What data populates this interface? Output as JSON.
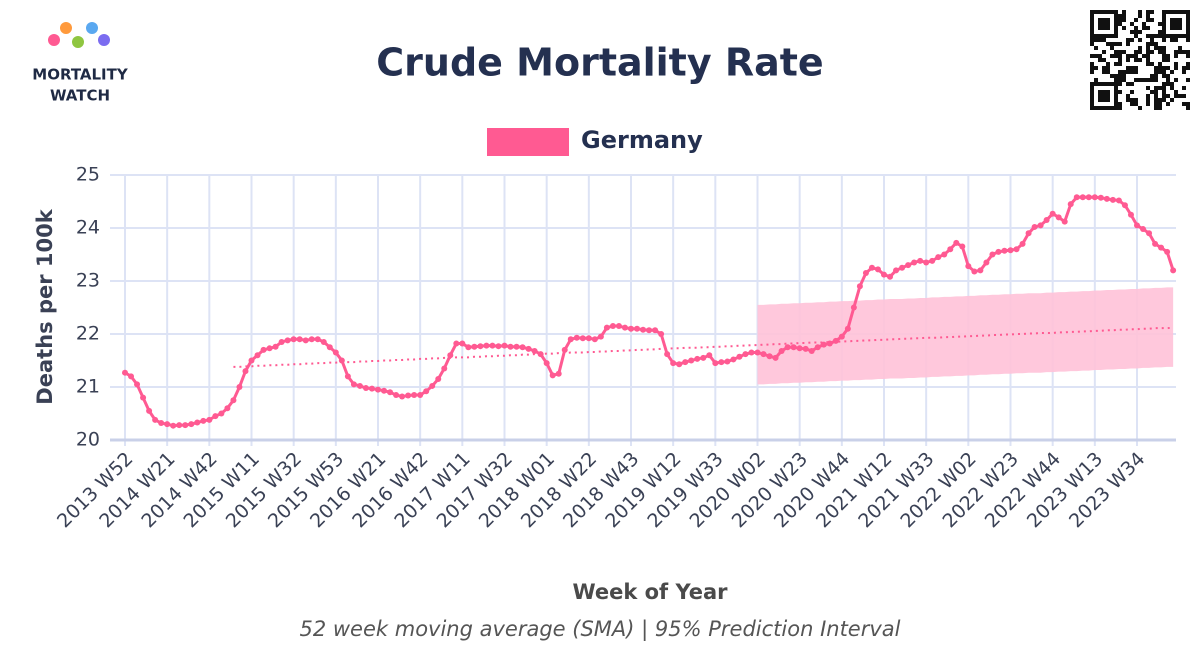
{
  "logo": {
    "line1": "MORTALITY",
    "line2": "WATCH"
  },
  "chart_data": {
    "type": "line",
    "title": "Crude Mortality Rate",
    "y_label": "Deaths per 100k",
    "x_label": "Week of Year",
    "caption": "52 week moving average (SMA) | 95% Prediction Interval",
    "legend_position": "top",
    "grid": true,
    "ylim": [
      20,
      25
    ],
    "yticks": [
      20,
      21,
      22,
      23,
      24,
      25
    ],
    "categories": [
      "2013 W52",
      null,
      null,
      null,
      null,
      null,
      null,
      "2014 W21",
      null,
      null,
      null,
      null,
      null,
      null,
      "2014 W42",
      null,
      null,
      null,
      null,
      null,
      null,
      "2015 W11",
      null,
      null,
      null,
      null,
      null,
      null,
      "2015 W32",
      null,
      null,
      null,
      null,
      null,
      null,
      "2015 W53",
      null,
      null,
      null,
      null,
      null,
      null,
      "2016 W21",
      null,
      null,
      null,
      null,
      null,
      null,
      "2016 W42",
      null,
      null,
      null,
      null,
      null,
      null,
      "2017 W11",
      null,
      null,
      null,
      null,
      null,
      null,
      "2017 W32",
      null,
      null,
      null,
      null,
      null,
      null,
      "2018 W01",
      null,
      null,
      null,
      null,
      null,
      null,
      "2018 W22",
      null,
      null,
      null,
      null,
      null,
      null,
      "2018 W43",
      null,
      null,
      null,
      null,
      null,
      null,
      "2019 W12",
      null,
      null,
      null,
      null,
      null,
      null,
      "2019 W33",
      null,
      null,
      null,
      null,
      null,
      null,
      "2020 W02",
      null,
      null,
      null,
      null,
      null,
      null,
      "2020 W23",
      null,
      null,
      null,
      null,
      null,
      null,
      "2020 W44",
      null,
      null,
      null,
      null,
      null,
      null,
      "2021 W12",
      null,
      null,
      null,
      null,
      null,
      null,
      "2021 W33",
      null,
      null,
      null,
      null,
      null,
      null,
      "2022 W02",
      null,
      null,
      null,
      null,
      null,
      null,
      "2022 W23",
      null,
      null,
      null,
      null,
      null,
      null,
      "2022 W44",
      null,
      null,
      null,
      null,
      null,
      null,
      "2023 W13",
      null,
      null,
      null,
      null,
      null,
      null,
      "2023 W34",
      null,
      null,
      null,
      null,
      null,
      null
    ],
    "series": [
      {
        "name": "Germany",
        "color": "#ff5a92",
        "values": [
          21.27,
          21.2,
          21.05,
          20.8,
          20.55,
          20.38,
          20.32,
          20.3,
          20.27,
          20.28,
          20.28,
          20.3,
          20.33,
          20.36,
          20.38,
          20.45,
          20.5,
          20.6,
          20.75,
          21.0,
          21.3,
          21.5,
          21.6,
          21.7,
          21.73,
          21.76,
          21.85,
          21.88,
          21.9,
          21.9,
          21.88,
          21.9,
          21.9,
          21.85,
          21.75,
          21.65,
          21.5,
          21.2,
          21.05,
          21.02,
          20.98,
          20.97,
          20.95,
          20.93,
          20.9,
          20.85,
          20.82,
          20.84,
          20.85,
          20.85,
          20.92,
          21.02,
          21.15,
          21.35,
          21.6,
          21.82,
          21.82,
          21.75,
          21.76,
          21.77,
          21.78,
          21.78,
          21.77,
          21.78,
          21.76,
          21.76,
          21.75,
          21.72,
          21.68,
          21.62,
          21.45,
          21.22,
          21.25,
          21.7,
          21.9,
          21.93,
          21.92,
          21.92,
          21.9,
          21.95,
          22.12,
          22.15,
          22.15,
          22.12,
          22.1,
          22.1,
          22.08,
          22.07,
          22.07,
          22.0,
          21.62,
          21.45,
          21.43,
          21.47,
          21.5,
          21.53,
          21.55,
          21.6,
          21.45,
          21.47,
          21.48,
          21.52,
          21.57,
          21.62,
          21.65,
          21.65,
          21.62,
          21.58,
          21.55,
          21.68,
          21.75,
          21.75,
          21.73,
          21.72,
          21.68,
          21.75,
          21.8,
          21.82,
          21.87,
          21.95,
          22.1,
          22.5,
          22.9,
          23.15,
          23.25,
          23.22,
          23.12,
          23.08,
          23.2,
          23.25,
          23.3,
          23.35,
          23.38,
          23.35,
          23.38,
          23.45,
          23.5,
          23.6,
          23.72,
          23.65,
          23.28,
          23.18,
          23.2,
          23.35,
          23.5,
          23.55,
          23.57,
          23.58,
          23.6,
          23.7,
          23.9,
          24.02,
          24.05,
          24.15,
          24.27,
          24.2,
          24.12,
          24.45,
          24.58,
          24.58,
          24.58,
          24.58,
          24.57,
          24.55,
          24.53,
          24.52,
          24.43,
          24.25,
          24.05,
          23.98,
          23.9,
          23.7,
          23.63,
          23.55,
          23.2
        ]
      }
    ],
    "baseline": {
      "color": "#ff5a92",
      "values": [
        null,
        null,
        null,
        null,
        null,
        null,
        null,
        null,
        null,
        null,
        null,
        null,
        null,
        null,
        null,
        null,
        null,
        null,
        21.38,
        21.38,
        21.39,
        21.39,
        21.4,
        21.4,
        21.41,
        21.41,
        21.42,
        21.42,
        21.43,
        21.43,
        21.44,
        21.44,
        21.45,
        21.45,
        21.46,
        21.46,
        21.47,
        21.47,
        21.47,
        21.48,
        21.48,
        21.49,
        21.49,
        21.5,
        21.5,
        21.51,
        21.51,
        21.52,
        21.52,
        21.53,
        21.53,
        21.54,
        21.54,
        21.55,
        21.55,
        21.56,
        21.56,
        21.56,
        21.57,
        21.57,
        21.58,
        21.58,
        21.59,
        21.59,
        21.6,
        21.6,
        21.61,
        21.61,
        21.62,
        21.62,
        21.63,
        21.63,
        21.64,
        21.64,
        21.65,
        21.65,
        21.65,
        21.66,
        21.66,
        21.67,
        21.67,
        21.68,
        21.68,
        21.69,
        21.69,
        21.7,
        21.7,
        21.71,
        21.71,
        21.72,
        21.72,
        21.73,
        21.73,
        21.74,
        21.74,
        21.74,
        21.75,
        21.75,
        21.76,
        21.76,
        21.77,
        21.77,
        21.78,
        21.78,
        21.79,
        21.79,
        21.8,
        21.8,
        21.81,
        21.81,
        21.82,
        21.82,
        21.83,
        21.83,
        21.84,
        21.84,
        21.84,
        21.85,
        21.85,
        21.86,
        21.86,
        21.87,
        21.87,
        21.88,
        21.88,
        21.89,
        21.89,
        21.9,
        21.9,
        21.91,
        21.91,
        21.92,
        21.92,
        21.93,
        21.93,
        21.93,
        21.94,
        21.94,
        21.95,
        21.95,
        21.96,
        21.96,
        21.97,
        21.97,
        21.98,
        21.98,
        21.99,
        21.99,
        22.0,
        22.0,
        22.01,
        22.01,
        22.02,
        22.02,
        22.02,
        22.03,
        22.03,
        22.04,
        22.04,
        22.05,
        22.05,
        22.06,
        22.06,
        22.07,
        22.07,
        22.08,
        22.08,
        22.09,
        22.09,
        22.1,
        22.1,
        22.11,
        22.11,
        22.11,
        22.12
      ]
    },
    "prediction_interval": {
      "color": "#ffc2d8",
      "lower": [
        null,
        null,
        null,
        null,
        null,
        null,
        null,
        null,
        null,
        null,
        null,
        null,
        null,
        null,
        null,
        null,
        null,
        null,
        null,
        null,
        null,
        null,
        null,
        null,
        null,
        null,
        null,
        null,
        null,
        null,
        null,
        null,
        null,
        null,
        null,
        null,
        null,
        null,
        null,
        null,
        null,
        null,
        null,
        null,
        null,
        null,
        null,
        null,
        null,
        null,
        null,
        null,
        null,
        null,
        null,
        null,
        null,
        null,
        null,
        null,
        null,
        null,
        null,
        null,
        null,
        null,
        null,
        null,
        null,
        null,
        null,
        null,
        null,
        null,
        null,
        null,
        null,
        null,
        null,
        null,
        null,
        null,
        null,
        null,
        null,
        null,
        null,
        null,
        null,
        null,
        null,
        null,
        null,
        null,
        null,
        null,
        null,
        null,
        null,
        null,
        null,
        null,
        null,
        null,
        null,
        21.05,
        21.05,
        21.06,
        21.06,
        21.07,
        21.07,
        21.08,
        21.08,
        21.09,
        21.09,
        21.1,
        21.1,
        21.11,
        21.11,
        21.12,
        21.12,
        21.13,
        21.13,
        21.14,
        21.14,
        21.15,
        21.15,
        21.16,
        21.16,
        21.16,
        21.17,
        21.17,
        21.18,
        21.18,
        21.19,
        21.19,
        21.2,
        21.2,
        21.21,
        21.21,
        21.22,
        21.22,
        21.23,
        21.23,
        21.24,
        21.24,
        21.25,
        21.25,
        21.26,
        21.26,
        21.27,
        21.27,
        21.27,
        21.28,
        21.28,
        21.29,
        21.29,
        21.3,
        21.3,
        21.31,
        21.31,
        21.32,
        21.32,
        21.33,
        21.33,
        21.34,
        21.34,
        21.35,
        21.35,
        21.36,
        21.36,
        21.37,
        21.37,
        21.38,
        21.38
      ],
      "upper": [
        null,
        null,
        null,
        null,
        null,
        null,
        null,
        null,
        null,
        null,
        null,
        null,
        null,
        null,
        null,
        null,
        null,
        null,
        null,
        null,
        null,
        null,
        null,
        null,
        null,
        null,
        null,
        null,
        null,
        null,
        null,
        null,
        null,
        null,
        null,
        null,
        null,
        null,
        null,
        null,
        null,
        null,
        null,
        null,
        null,
        null,
        null,
        null,
        null,
        null,
        null,
        null,
        null,
        null,
        null,
        null,
        null,
        null,
        null,
        null,
        null,
        null,
        null,
        null,
        null,
        null,
        null,
        null,
        null,
        null,
        null,
        null,
        null,
        null,
        null,
        null,
        null,
        null,
        null,
        null,
        null,
        null,
        null,
        null,
        null,
        null,
        null,
        null,
        null,
        null,
        null,
        null,
        null,
        null,
        null,
        null,
        null,
        null,
        null,
        null,
        null,
        null,
        null,
        null,
        null,
        22.55,
        22.55,
        22.56,
        22.56,
        22.57,
        22.57,
        22.58,
        22.58,
        22.59,
        22.59,
        22.6,
        22.6,
        22.61,
        22.61,
        22.62,
        22.62,
        22.63,
        22.63,
        22.64,
        22.64,
        22.65,
        22.65,
        22.66,
        22.66,
        22.66,
        22.67,
        22.67,
        22.68,
        22.68,
        22.69,
        22.69,
        22.7,
        22.7,
        22.71,
        22.71,
        22.72,
        22.72,
        22.73,
        22.73,
        22.74,
        22.74,
        22.75,
        22.75,
        22.76,
        22.76,
        22.77,
        22.77,
        22.77,
        22.78,
        22.78,
        22.79,
        22.79,
        22.8,
        22.8,
        22.81,
        22.81,
        22.82,
        22.82,
        22.83,
        22.83,
        22.84,
        22.84,
        22.85,
        22.85,
        22.86,
        22.86,
        22.87,
        22.87,
        22.88,
        22.88
      ]
    }
  }
}
